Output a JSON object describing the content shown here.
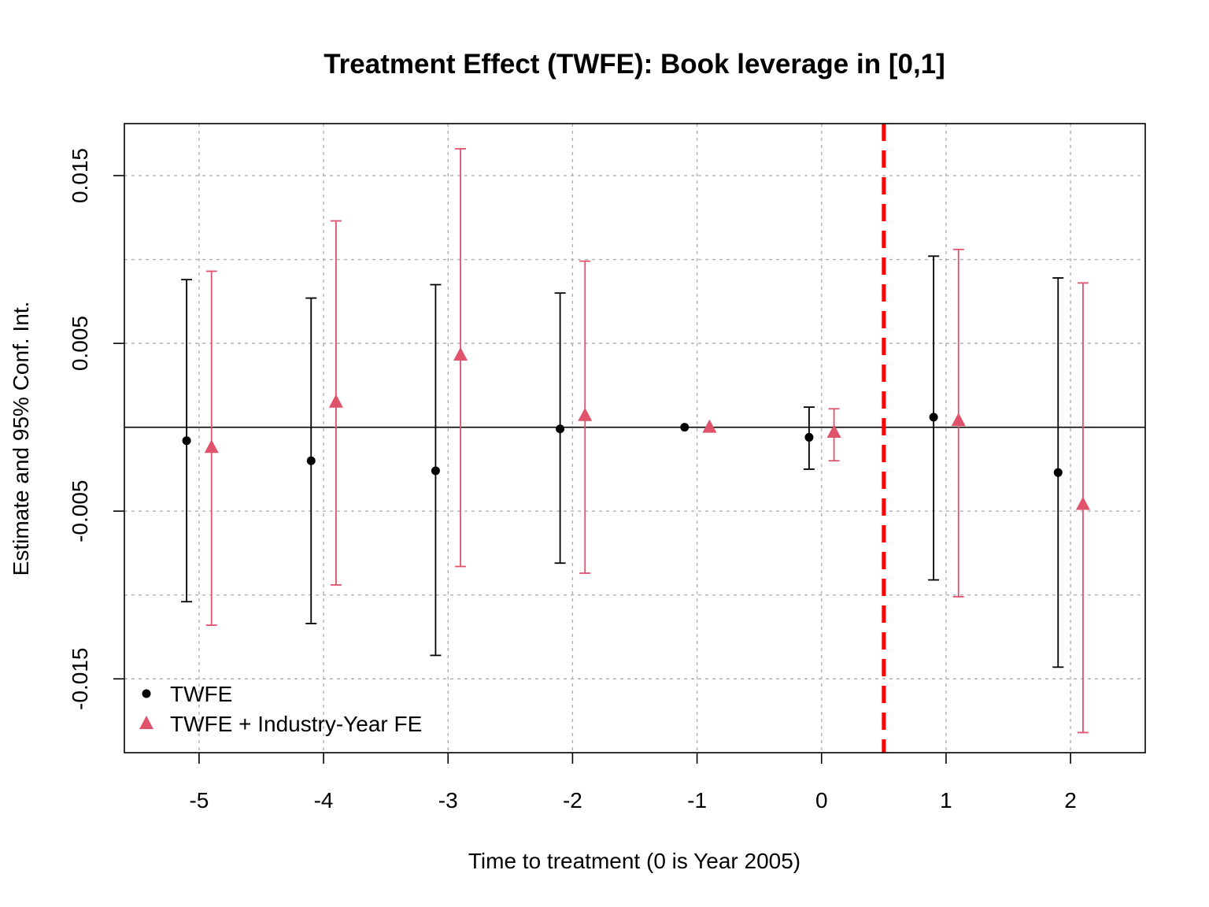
{
  "chart_data": {
    "type": "scatter",
    "title": "Treatment Effect (TWFE): Book leverage in [0,1]",
    "xlabel": "Time to treatment (0 is Year 2005)",
    "ylabel": "Estimate and 95% Conf. Int.",
    "xlim": [
      -5.6,
      2.6
    ],
    "ylim": [
      -0.0194,
      0.0181
    ],
    "x_ticks": [
      -5,
      -4,
      -3,
      -2,
      -1,
      0,
      1,
      2
    ],
    "x_tick_labels": [
      "-5",
      "-4",
      "-3",
      "-2",
      "-1",
      "0",
      "1",
      "2"
    ],
    "y_ticks": [
      -0.015,
      -0.005,
      0.005,
      0.015
    ],
    "y_tick_labels": [
      "-0.015",
      "-0.005",
      "0.005",
      "0.015"
    ],
    "y_grid": [
      -0.015,
      -0.01,
      -0.005,
      0.0,
      0.005,
      0.01,
      0.015
    ],
    "grid": true,
    "reference_hline": 0,
    "treatment_vline": 0.5,
    "treatment_vline_color": "#ff0000",
    "legend_position": "bottom-left",
    "series": [
      {
        "name": "TWFE",
        "marker": "circle",
        "color": "#000000",
        "offset": -0.1,
        "x": [
          -5,
          -4,
          -3,
          -2,
          -1,
          0,
          1,
          2
        ],
        "estimate": [
          -0.0008,
          -0.002,
          -0.0026,
          -0.0001,
          0.0,
          -0.0006,
          0.0006,
          -0.0027
        ],
        "ci_low": [
          -0.0104,
          -0.0117,
          -0.0136,
          -0.0081,
          null,
          -0.0025,
          -0.0091,
          -0.0143
        ],
        "ci_high": [
          0.0088,
          0.0077,
          0.0085,
          0.008,
          null,
          0.0012,
          0.0102,
          0.0089
        ]
      },
      {
        "name": "TWFE + Industry-Year FE",
        "marker": "triangle",
        "color": "#DF536B",
        "offset": 0.1,
        "x": [
          -5,
          -4,
          -3,
          -2,
          -1,
          0,
          1,
          2
        ],
        "estimate": [
          -0.0012,
          0.0015,
          0.0043,
          0.0007,
          0.0,
          -0.0003,
          0.0004,
          -0.0046
        ],
        "ci_low": [
          -0.0118,
          -0.0094,
          -0.0083,
          -0.0087,
          null,
          -0.002,
          -0.0101,
          -0.0182
        ],
        "ci_high": [
          0.0093,
          0.0123,
          0.0166,
          0.0099,
          null,
          0.0011,
          0.0106,
          0.0086
        ]
      }
    ]
  }
}
